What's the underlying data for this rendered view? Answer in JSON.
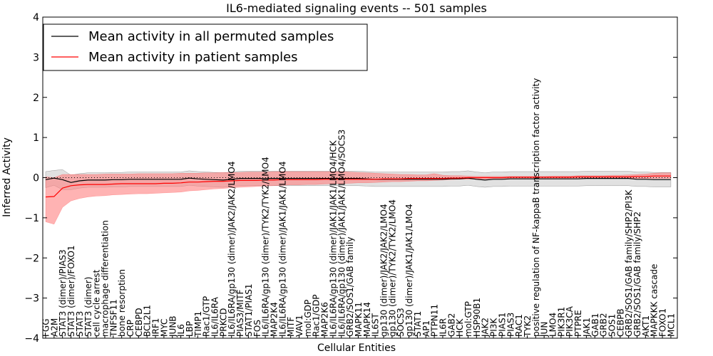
{
  "chart_data": {
    "type": "line",
    "title": "IL6-mediated signaling events -- 501 samples",
    "xlabel": "Cellular Entities",
    "ylabel": "Inferred Activity",
    "ylim": [
      -4,
      4
    ],
    "yticks": [
      -4,
      -3,
      -2,
      -1,
      0,
      1,
      2,
      3,
      4
    ],
    "legend_position": "top-left",
    "colors": {
      "permuted_line": "#000000",
      "patient_line": "#ff0000",
      "permuted_band": "#bdbdbd",
      "patient_band": "#ff8080"
    },
    "categories": [
      "FGG",
      "A2M",
      "STAT3 (dimer)/PIAS3",
      "STAT3 (dimer)/FOXO1",
      "STAT3",
      "STAT3 (dimer)",
      "cell cycle arrest",
      "macrophage differentiation",
      "TNFSF11",
      "bone resorption",
      "CRP",
      "CEBPD",
      "BCL2L1",
      "IRF1",
      "MYC",
      "JUNB",
      "IL6",
      "LBP",
      "TIMP1",
      "Rac1/GTP",
      "IL6/IL6RA",
      "PRKCD",
      "IL6/IL6RA/gp130 (dimer)/JAK2/JAK2/LMO4",
      "PIAS3/MITF",
      "STAT1/PIAS1",
      "FOS",
      "IL6/IL6RA/gp130 (dimer)/TYK2/TYK2/LMO4",
      "MAP2K4",
      "IL6/IL6RA/gp130 (dimer)/JAK1/JAK1/LMO4",
      "MITF",
      "VAV1",
      "mol:GDP",
      "Rac1/GDP",
      "MAP2K6",
      "IL6/IL6RA/gp130 (dimer)/JAK1/JAK1/LMO4/HCK",
      "IL6/IL6RA/gp130 (dimer)/JAK1/JAK1/LMO4/SOCS3",
      "GRB2/SOS1/GAB family",
      "MAPK11",
      "MAPK14",
      "IL6ST",
      "gp130 (dimer)/JAK2/JAK2/LMO4",
      "gp130 (dimer)/TYK2/TYK2/LMO4",
      "SOCS3",
      "gp130 (dimer)/JAK1/JAK1/LMO4",
      "STAT1",
      "AP1",
      "PTPN11",
      "IL6R",
      "GAB2",
      "HCK",
      "mol:GTP",
      "HSP90B1",
      "JAK2",
      "PI3K",
      "PIAS1",
      "PIAS3",
      "RAC1",
      "TYK2",
      "positive regulation of NF-kappaB transcription factor activity",
      "JUN",
      "LMO4",
      "PIK3R1",
      "PIK3CA",
      "PTPRE",
      "JAK1",
      "GAB1",
      "GRB2",
      "SOS1",
      "CEBPB",
      "GRB2/SOS1/GAB family/SHP2/PI3K",
      "GRB2/SOS1/GAB family/SHP2",
      "AKT1",
      "MAPKKK cascade",
      "FOXO1",
      "MCL1"
    ],
    "series": [
      {
        "name": "Mean activity in all permuted samples",
        "values": [
          -0.05,
          -0.01,
          -0.05,
          -0.12,
          -0.08,
          -0.06,
          -0.06,
          -0.06,
          -0.05,
          -0.05,
          -0.04,
          -0.04,
          -0.04,
          -0.04,
          -0.04,
          -0.04,
          -0.04,
          -0.01,
          -0.03,
          -0.04,
          -0.05,
          -0.06,
          -0.04,
          -0.02,
          -0.02,
          -0.02,
          -0.02,
          -0.02,
          -0.02,
          -0.02,
          -0.02,
          -0.02,
          -0.02,
          -0.02,
          -0.02,
          -0.02,
          -0.02,
          -0.02,
          -0.03,
          -0.04,
          -0.04,
          -0.04,
          -0.04,
          -0.04,
          -0.04,
          -0.04,
          -0.04,
          -0.04,
          -0.03,
          -0.03,
          -0.01,
          -0.04,
          -0.06,
          -0.04,
          -0.04,
          -0.03,
          -0.03,
          -0.03,
          -0.03,
          -0.03,
          -0.03,
          -0.03,
          -0.03,
          -0.03,
          -0.02,
          -0.02,
          -0.02,
          -0.02,
          -0.02,
          -0.02,
          -0.04,
          -0.04,
          -0.05,
          -0.05,
          -0.05
        ],
        "lower": [
          -0.25,
          -0.19,
          -0.3,
          -0.3,
          -0.26,
          -0.24,
          -0.24,
          -0.24,
          -0.23,
          -0.23,
          -0.22,
          -0.22,
          -0.22,
          -0.22,
          -0.22,
          -0.22,
          -0.22,
          -0.19,
          -0.21,
          -0.22,
          -0.23,
          -0.24,
          -0.22,
          -0.2,
          -0.2,
          -0.2,
          -0.2,
          -0.2,
          -0.2,
          -0.2,
          -0.2,
          -0.2,
          -0.2,
          -0.2,
          -0.2,
          -0.2,
          -0.2,
          -0.2,
          -0.21,
          -0.22,
          -0.22,
          -0.22,
          -0.22,
          -0.22,
          -0.22,
          -0.22,
          -0.22,
          -0.22,
          -0.21,
          -0.21,
          -0.19,
          -0.22,
          -0.24,
          -0.22,
          -0.22,
          -0.21,
          -0.21,
          -0.21,
          -0.21,
          -0.21,
          -0.21,
          -0.21,
          -0.21,
          -0.21,
          -0.2,
          -0.2,
          -0.2,
          -0.2,
          -0.2,
          -0.2,
          -0.22,
          -0.22,
          -0.23,
          -0.23,
          -0.23
        ],
        "upper": [
          0.15,
          0.18,
          0.2,
          0.06,
          0.1,
          0.12,
          0.12,
          0.12,
          0.13,
          0.13,
          0.14,
          0.14,
          0.14,
          0.14,
          0.14,
          0.14,
          0.14,
          0.17,
          0.15,
          0.14,
          0.13,
          0.12,
          0.14,
          0.16,
          0.16,
          0.16,
          0.16,
          0.16,
          0.16,
          0.16,
          0.16,
          0.16,
          0.16,
          0.16,
          0.16,
          0.16,
          0.16,
          0.16,
          0.15,
          0.14,
          0.14,
          0.14,
          0.14,
          0.14,
          0.14,
          0.14,
          0.14,
          0.14,
          0.15,
          0.15,
          0.17,
          0.14,
          0.12,
          0.14,
          0.14,
          0.15,
          0.15,
          0.15,
          0.15,
          0.15,
          0.15,
          0.15,
          0.15,
          0.15,
          0.16,
          0.16,
          0.16,
          0.16,
          0.16,
          0.16,
          0.14,
          0.14,
          0.13,
          0.13,
          0.13
        ]
      },
      {
        "name": "Mean activity in patient samples",
        "values": [
          -0.48,
          -0.47,
          -0.26,
          -0.2,
          -0.18,
          -0.17,
          -0.17,
          -0.17,
          -0.16,
          -0.15,
          -0.15,
          -0.15,
          -0.15,
          -0.15,
          -0.14,
          -0.14,
          -0.13,
          -0.11,
          -0.11,
          -0.1,
          -0.09,
          -0.09,
          -0.08,
          -0.07,
          -0.07,
          -0.07,
          -0.06,
          -0.06,
          -0.05,
          -0.05,
          -0.05,
          -0.05,
          -0.05,
          -0.04,
          -0.04,
          -0.04,
          -0.04,
          -0.04,
          -0.04,
          -0.04,
          -0.03,
          -0.03,
          -0.03,
          -0.02,
          -0.02,
          -0.02,
          -0.02,
          -0.02,
          -0.01,
          -0.01,
          0.0,
          0.0,
          0.0,
          0.0,
          0.0,
          0.01,
          0.01,
          0.01,
          0.01,
          0.01,
          0.01,
          0.01,
          0.01,
          0.02,
          0.02,
          0.02,
          0.02,
          0.02,
          0.02,
          0.02,
          0.03,
          0.03,
          0.04,
          0.04,
          0.04
        ],
        "lower": [
          -1.1,
          -1.16,
          -0.74,
          -0.58,
          -0.52,
          -0.48,
          -0.46,
          -0.45,
          -0.43,
          -0.42,
          -0.41,
          -0.4,
          -0.4,
          -0.39,
          -0.38,
          -0.37,
          -0.36,
          -0.33,
          -0.32,
          -0.3,
          -0.28,
          -0.27,
          -0.25,
          -0.24,
          -0.23,
          -0.22,
          -0.21,
          -0.2,
          -0.19,
          -0.18,
          -0.18,
          -0.17,
          -0.17,
          -0.16,
          -0.15,
          -0.15,
          -0.14,
          -0.13,
          -0.13,
          -0.12,
          -0.11,
          -0.1,
          -0.1,
          -0.09,
          -0.08,
          -0.08,
          -0.07,
          -0.06,
          -0.05,
          -0.04,
          -0.04,
          -0.03,
          -0.03,
          -0.02,
          -0.02,
          -0.01,
          -0.01,
          -0.01,
          -0.01,
          -0.01,
          -0.01,
          -0.01,
          -0.01,
          -0.01,
          -0.01,
          -0.01,
          -0.01,
          -0.01,
          -0.01,
          -0.01,
          -0.02,
          -0.02,
          -0.02,
          -0.02,
          -0.02
        ],
        "upper": [
          0.02,
          0.0,
          0.08,
          0.08,
          0.08,
          0.08,
          0.08,
          0.09,
          0.09,
          0.09,
          0.09,
          0.1,
          0.1,
          0.1,
          0.1,
          0.1,
          0.11,
          0.11,
          0.11,
          0.12,
          0.12,
          0.13,
          0.13,
          0.13,
          0.14,
          0.14,
          0.14,
          0.15,
          0.15,
          0.15,
          0.15,
          0.15,
          0.15,
          0.15,
          0.15,
          0.15,
          0.14,
          0.13,
          0.12,
          0.11,
          0.1,
          0.09,
          0.08,
          0.08,
          0.07,
          0.07,
          0.1,
          0.06,
          0.05,
          0.05,
          0.04,
          0.03,
          0.03,
          0.03,
          0.03,
          0.03,
          0.03,
          0.03,
          0.03,
          0.03,
          0.04,
          0.04,
          0.04,
          0.05,
          0.05,
          0.05,
          0.05,
          0.06,
          0.06,
          0.07,
          0.08,
          0.09,
          0.11,
          0.12,
          0.12
        ]
      }
    ]
  }
}
